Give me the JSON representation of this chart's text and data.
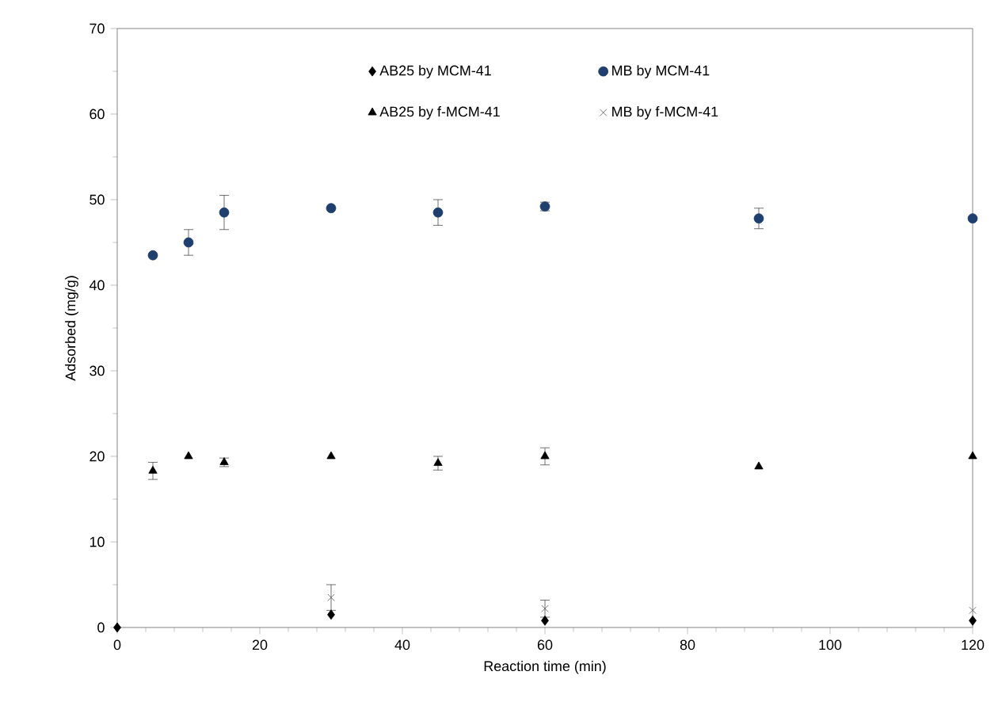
{
  "chart_data": {
    "type": "scatter",
    "xlabel": "Reaction time (min)",
    "ylabel": "Adsorbed (mg/g)",
    "xlim": [
      0,
      120
    ],
    "xticks": [
      0,
      20,
      40,
      60,
      80,
      100,
      120
    ],
    "ylim": [
      0,
      70
    ],
    "yticks": [
      0,
      10,
      20,
      30,
      40,
      50,
      60,
      70
    ],
    "grid": false,
    "legend": "top",
    "series": [
      {
        "name": "AB25 by MCM-41",
        "color": "#000000",
        "marker": "diamond",
        "x": [
          0,
          30,
          60,
          120
        ],
        "values": [
          0,
          1.5,
          0.8,
          0.8
        ]
      },
      {
        "name": "MB by MCM-41",
        "color": "#1f3f6e",
        "marker": "circle",
        "x": [
          5,
          10,
          15,
          30,
          45,
          60,
          90,
          120
        ],
        "values": [
          43.5,
          45,
          48.5,
          49,
          48.5,
          49.2,
          47.8,
          47.8
        ],
        "errors": [
          null,
          1.5,
          2,
          null,
          1.5,
          0.5,
          1.2,
          null
        ]
      },
      {
        "name": "AB25 by f-MCM-41",
        "color": "#000000",
        "marker": "triangle",
        "x": [
          5,
          10,
          15,
          30,
          45,
          60,
          90,
          120
        ],
        "values": [
          18.3,
          20,
          19.3,
          20,
          19.2,
          20,
          18.8,
          20
        ],
        "errors": [
          1,
          null,
          0.5,
          null,
          0.8,
          1,
          null,
          null
        ]
      },
      {
        "name": "MB by f-MCM-41",
        "color": "#555555",
        "marker": "cross",
        "x": [
          30,
          60,
          120
        ],
        "values": [
          3.5,
          2.2,
          2
        ],
        "errors": [
          1.5,
          1,
          null
        ]
      }
    ]
  }
}
